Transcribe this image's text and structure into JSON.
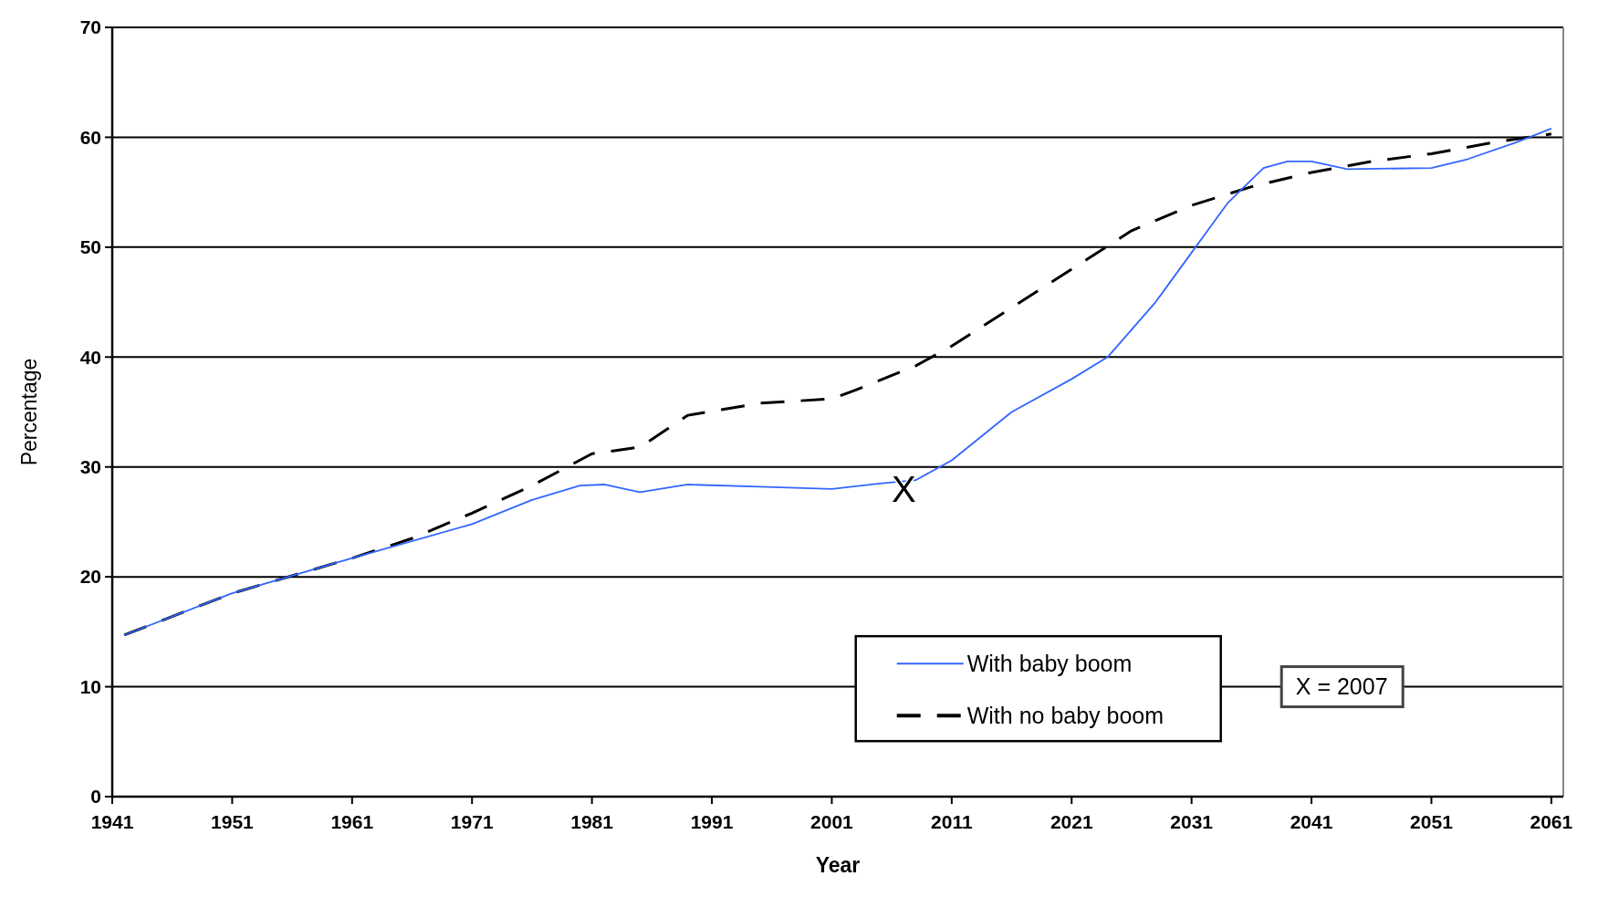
{
  "chart_data": {
    "type": "line",
    "xlabel": "Year",
    "ylabel": "Percentage",
    "xlim": [
      1941,
      2062
    ],
    "xticks": [
      1941,
      1951,
      1961,
      1971,
      1981,
      1991,
      2001,
      2011,
      2021,
      2031,
      2041,
      2051,
      2061
    ],
    "ylim": [
      0,
      70
    ],
    "yticks": [
      0,
      10,
      20,
      30,
      40,
      50,
      60,
      70
    ],
    "grid": "y",
    "legend": "bottom right",
    "series": [
      {
        "name": "With baby boom",
        "color": "#3366ff",
        "line_style": "solid",
        "x": [
          1942,
          1951,
          1961,
          1971,
          1976,
          1980,
          1982,
          1985,
          1989,
          1995,
          2001,
          2005,
          2008,
          2011,
          2016,
          2021,
          2024,
          2028,
          2031,
          2034,
          2037,
          2039,
          2041,
          2044,
          2051,
          2054,
          2058,
          2061
        ],
        "values": [
          14.7,
          18.5,
          21.7,
          24.8,
          27,
          28.3,
          28.4,
          27.7,
          28.4,
          28.2,
          28,
          28.5,
          28.8,
          30.6,
          35,
          38,
          40,
          45,
          49.5,
          54,
          57.2,
          57.8,
          57.8,
          57.1,
          57.2,
          58,
          59.5,
          60.8
        ]
      },
      {
        "name": "With no baby boom",
        "color": "#000000",
        "line_style": "dashed",
        "x": [
          1942,
          1951,
          1961,
          1966,
          1971,
          1976,
          1981,
          1985,
          1989,
          1995,
          2001,
          2003,
          2008,
          2011,
          2016,
          2021,
          2026,
          2031,
          2036,
          2041,
          2046,
          2051,
          2056,
          2061
        ],
        "values": [
          14.7,
          18.5,
          21.7,
          23.5,
          25.8,
          28.3,
          31.2,
          31.8,
          34.7,
          35.8,
          36.2,
          37,
          39.2,
          41,
          44.5,
          48,
          51.5,
          53.8,
          55.5,
          56.8,
          57.8,
          58.5,
          59.5,
          60.3
        ]
      }
    ],
    "annotations": [
      {
        "text": "X",
        "x": 2007,
        "y": 28.8
      },
      "X = 2007"
    ]
  }
}
